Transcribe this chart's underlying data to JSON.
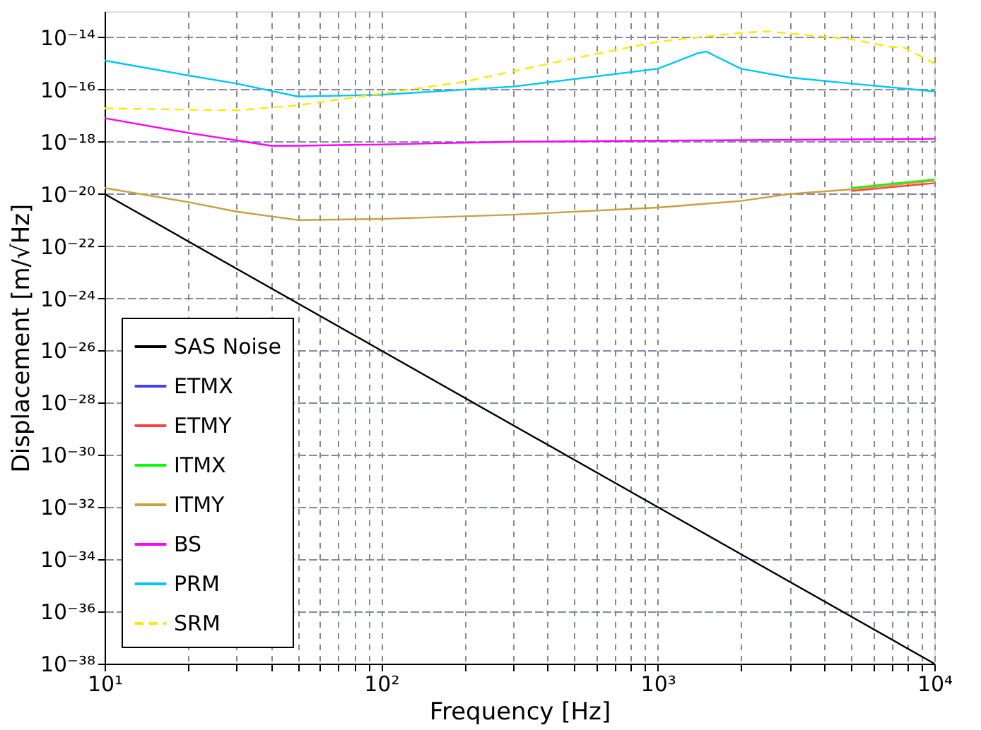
{
  "chart_data": {
    "type": "line",
    "xlabel": "Frequency [Hz]",
    "ylabel": "Displacement [m/√Hz]",
    "log": "xy",
    "grid": true,
    "legend": "bottom left",
    "line_style": "solid",
    "xlim": [
      10,
      10000
    ],
    "ylim": [
      1e-38,
      1e-13
    ],
    "xticks": [
      {
        "value": 10,
        "label": "10¹"
      },
      {
        "value": 20,
        "label": null
      },
      {
        "value": 30,
        "label": null
      },
      {
        "value": 40,
        "label": null
      },
      {
        "value": 50,
        "label": null
      },
      {
        "value": 60,
        "label": null
      },
      {
        "value": 70,
        "label": null
      },
      {
        "value": 80,
        "label": null
      },
      {
        "value": 90,
        "label": null
      },
      {
        "value": 100,
        "label": "10²"
      },
      {
        "value": 200,
        "label": null
      },
      {
        "value": 300,
        "label": null
      },
      {
        "value": 400,
        "label": null
      },
      {
        "value": 500,
        "label": null
      },
      {
        "value": 600,
        "label": null
      },
      {
        "value": 700,
        "label": null
      },
      {
        "value": 800,
        "label": null
      },
      {
        "value": 900,
        "label": null
      },
      {
        "value": 1000,
        "label": "10³"
      },
      {
        "value": 2000,
        "label": null
      },
      {
        "value": 3000,
        "label": null
      },
      {
        "value": 4000,
        "label": null
      },
      {
        "value": 5000,
        "label": null
      },
      {
        "value": 6000,
        "label": null
      },
      {
        "value": 7000,
        "label": null
      },
      {
        "value": 8000,
        "label": null
      },
      {
        "value": 9000,
        "label": null
      },
      {
        "value": 10000,
        "label": "10⁴"
      }
    ],
    "yticks": [
      {
        "value": 1e-14,
        "label": "10⁻¹⁴"
      },
      {
        "value": 1e-16,
        "label": "10⁻¹⁶"
      },
      {
        "value": 1e-18,
        "label": "10⁻¹⁸"
      },
      {
        "value": 1e-20,
        "label": "10⁻²⁰"
      },
      {
        "value": 1e-22,
        "label": "10⁻²²"
      },
      {
        "value": 1e-24,
        "label": "10⁻²⁴"
      },
      {
        "value": 1e-26,
        "label": "10⁻²⁶"
      },
      {
        "value": 1e-28,
        "label": "10⁻²⁸"
      },
      {
        "value": 1e-30,
        "label": "10⁻³⁰"
      },
      {
        "value": 1e-32,
        "label": "10⁻³²"
      },
      {
        "value": 1e-34,
        "label": "10⁻³⁴"
      },
      {
        "value": 1e-36,
        "label": "10⁻³⁶"
      },
      {
        "value": 1e-38,
        "label": "10⁻³⁸"
      }
    ],
    "series": [
      {
        "name": "SAS Noise",
        "color": "#000000",
        "x": [
          10,
          100,
          1000,
          10000
        ],
        "values": [
          1e-20,
          1e-26,
          1e-32,
          1e-38
        ]
      },
      {
        "name": "ETMX",
        "color": "#4040ff"
      },
      {
        "name": "ETMY",
        "color": "#ff4040",
        "x": [
          5000,
          10000
        ],
        "values": [
          1.3e-20,
          2.6e-20
        ]
      },
      {
        "name": "ITMX",
        "color": "#00ff00",
        "x": [
          5000,
          10000
        ],
        "values": [
          1.7e-20,
          3.6e-20
        ]
      },
      {
        "name": "ITMY",
        "color": "#c8a040",
        "x": [
          10,
          20,
          30,
          50,
          100,
          300,
          1000,
          2000,
          3000,
          5000,
          10000
        ],
        "values": [
          1.7e-20,
          4.9e-21,
          2.1e-21,
          1e-21,
          1.1e-21,
          1.6e-21,
          3e-21,
          5.4e-21,
          1e-20,
          1.5e-20,
          3.2e-20
        ]
      },
      {
        "name": "BS",
        "color": "#ff00ff",
        "x": [
          10,
          20,
          40,
          50,
          100,
          300,
          1000,
          10000
        ],
        "values": [
          8e-18,
          2.2e-18,
          7e-19,
          7e-19,
          7.9e-19,
          1e-18,
          1.1e-18,
          1.3e-18
        ]
      },
      {
        "name": "PRM",
        "color": "#00c8f0",
        "x": [
          10,
          20,
          30,
          50,
          100,
          300,
          1000,
          1400,
          1500,
          1600,
          2000,
          3000,
          5000,
          10000
        ],
        "values": [
          1.3e-15,
          3.5e-16,
          1.7e-16,
          5.4e-17,
          6.3e-17,
          1.3e-16,
          6.3e-16,
          2.5e-15,
          2.9e-15,
          2e-15,
          6.3e-16,
          2.9e-16,
          1.7e-16,
          8.5e-17
        ]
      },
      {
        "name": "SRM",
        "color": "#ffe800",
        "line_style": "dashed",
        "x": [
          10,
          30,
          50,
          100,
          200,
          500,
          1000,
          2000,
          2500,
          5000,
          7000,
          7800,
          10000
        ],
        "values": [
          1.9e-17,
          1.6e-17,
          2.5e-17,
          7e-17,
          2e-16,
          1.6e-15,
          6.8e-15,
          1.5e-14,
          1.7e-14,
          8.5e-15,
          4.3e-15,
          4e-15,
          1e-15
        ]
      }
    ]
  }
}
